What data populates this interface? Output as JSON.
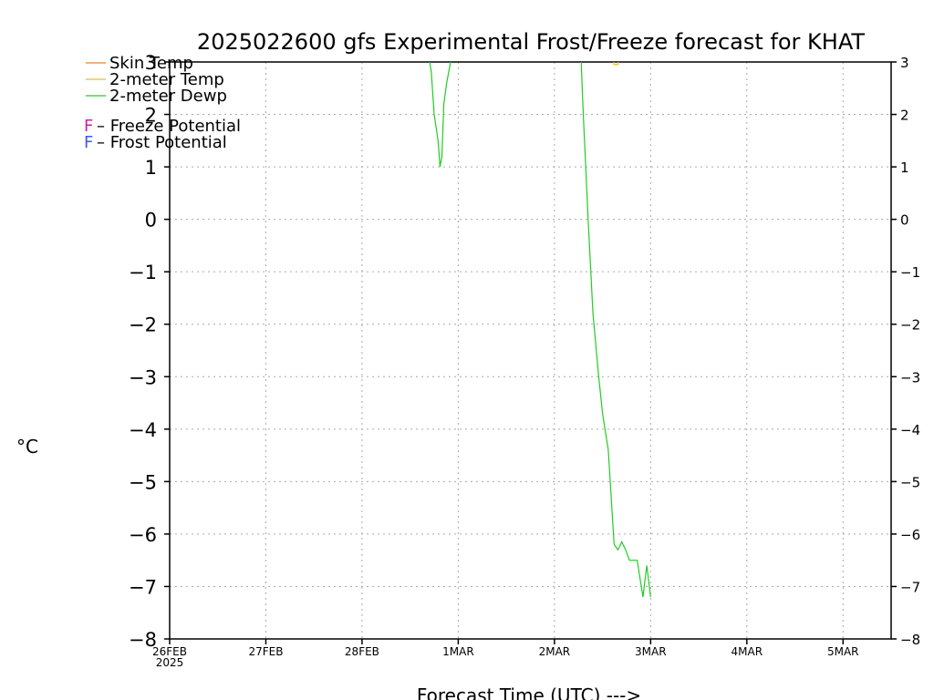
{
  "chart_data": {
    "type": "line",
    "title": "2025022600 gfs Experimental Frost/Freeze forecast for KHAT",
    "xlabel": "Forecast Time (UTC) --->",
    "ylabel": "°C",
    "ylim": [
      -8,
      3
    ],
    "xlim": [
      0,
      7.5
    ],
    "yticks": [
      -8,
      -7,
      -6,
      -5,
      -4,
      -3,
      -2,
      -1,
      0,
      1,
      2,
      3
    ],
    "xticks": [
      {
        "x": 0,
        "label": "26FEB",
        "sublabel": "2025"
      },
      {
        "x": 1,
        "label": "27FEB"
      },
      {
        "x": 2,
        "label": "28FEB"
      },
      {
        "x": 3,
        "label": "1MAR"
      },
      {
        "x": 4,
        "label": "2MAR"
      },
      {
        "x": 5,
        "label": "3MAR"
      },
      {
        "x": 6,
        "label": "4MAR"
      },
      {
        "x": 7,
        "label": "5MAR"
      }
    ],
    "grid": true,
    "legend_placement": "top-left",
    "series": [
      {
        "name": "Skin Temp",
        "color": "#f08030",
        "x": [],
        "y": []
      },
      {
        "name": "2-meter Temp",
        "color": "#e8c020",
        "x": [
          4.58,
          4.62,
          4.66,
          4.7
        ],
        "y": [
          3.4,
          2.95,
          2.95,
          3.4
        ]
      },
      {
        "name": "2-meter Dewp",
        "color": "#22cc22",
        "x": [
          2.67,
          2.72,
          2.75,
          2.79,
          2.81,
          2.83,
          2.85,
          2.88,
          2.92,
          2.94
        ],
        "y": [
          3.4,
          2.8,
          2.0,
          1.5,
          1.0,
          1.2,
          2.2,
          2.6,
          3.0,
          3.4
        ]
      },
      {
        "name": "2-meter Dewp",
        "color": "#22cc22",
        "x": [
          4.27,
          4.3,
          4.35,
          4.4,
          4.46,
          4.5,
          4.56,
          4.62,
          4.66,
          4.7,
          4.74,
          4.78,
          4.82,
          4.86,
          4.92,
          4.96,
          5.0
        ],
        "y": [
          3.4,
          2.0,
          0.0,
          -1.8,
          -3.0,
          -3.7,
          -4.4,
          -6.2,
          -6.3,
          -6.15,
          -6.3,
          -6.5,
          -6.5,
          -6.5,
          -7.2,
          -6.6,
          -7.2
        ]
      }
    ],
    "legend": [
      {
        "label": "Skin Temp",
        "color": "#f08030"
      },
      {
        "label": "2-meter Temp",
        "color": "#e8c020"
      },
      {
        "label": "2-meter Dewp",
        "color": "#22cc22"
      }
    ],
    "annotations": [
      {
        "symbol": "F",
        "symbol_color": "#cc2299",
        "text": " – Freeze Potential"
      },
      {
        "symbol": "F",
        "symbol_color": "#4455ee",
        "text": " – Frost Potential"
      }
    ]
  }
}
